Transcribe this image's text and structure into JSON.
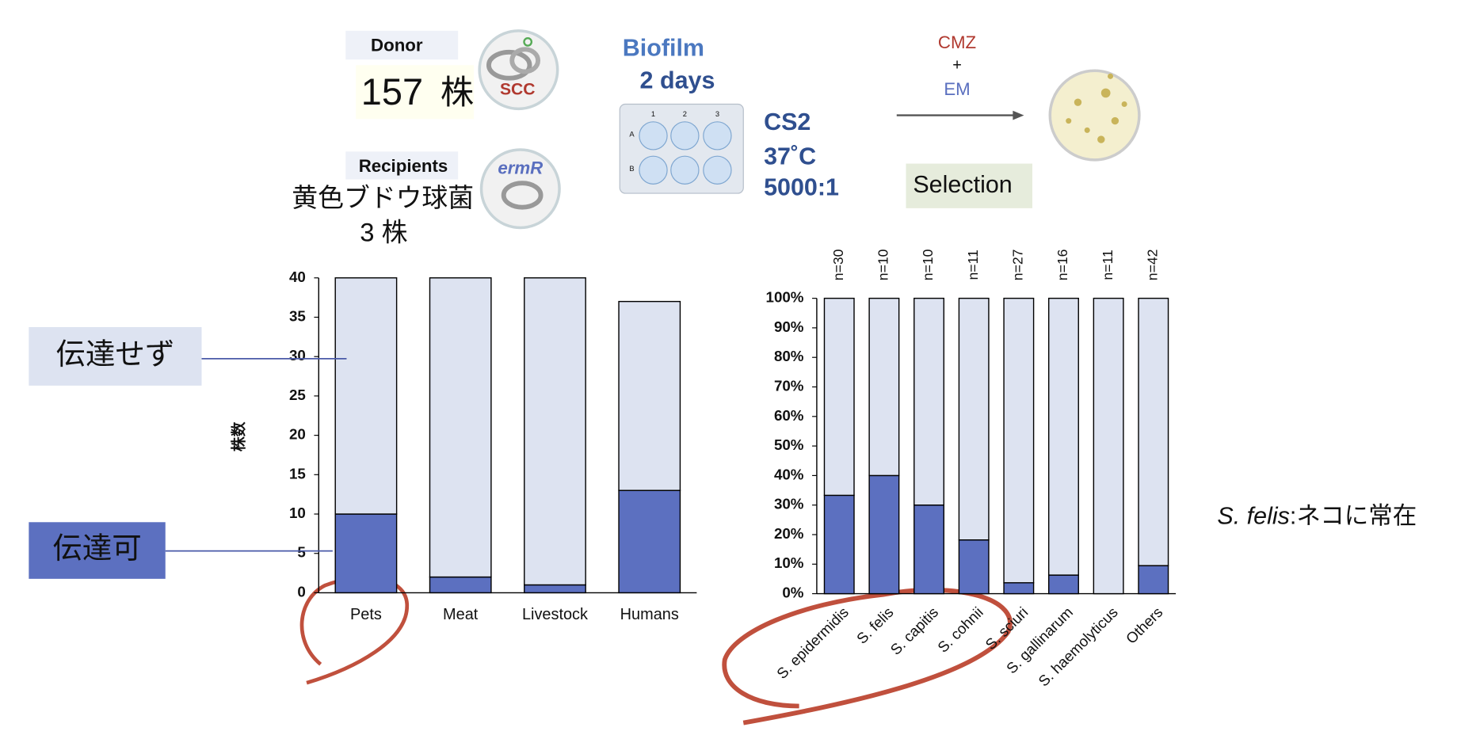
{
  "protocol": {
    "donor_label": "Donor",
    "donor_count": "157",
    "donor_unit": "株",
    "donor_element": "SCC",
    "recipients_label": "Recipients",
    "recipient_marker": "ermR",
    "recipient_species": "黄色ブドウ球菌",
    "recipient_count": "3 株",
    "biofilm": "Biofilm",
    "duration": "2 days",
    "plate_columns": [
      "1",
      "2",
      "3"
    ],
    "plate_rows": [
      "A",
      "B"
    ],
    "medium": "CS2",
    "temperature": "37˚C",
    "ratio": "5000:1",
    "drug_1": "CMZ",
    "plus": "+",
    "drug_2": "EM",
    "selection": "Selection"
  },
  "chart_data": [
    {
      "type": "stacked_bar",
      "y_label": "株数",
      "categories": [
        "Pets",
        "Meat",
        "Livestock",
        "Humans"
      ],
      "series": [
        {
          "name": "伝達可",
          "color": "#5c70c0",
          "values": [
            10,
            2,
            1,
            13
          ]
        },
        {
          "name": "伝達せず",
          "color": "#dde3f1",
          "values": [
            30,
            38,
            39,
            24
          ]
        }
      ],
      "ylim": [
        0,
        40
      ],
      "yticks": [
        0,
        5,
        10,
        15,
        20,
        25,
        30,
        35,
        40
      ]
    },
    {
      "type": "stacked_bar",
      "categories": [
        "S. epidermidis",
        "S. felis",
        "S. capitis",
        "S. cohnii",
        "S. sciuri",
        "S. gallinarum",
        "S. haemolyticus",
        "Others"
      ],
      "n_labels": [
        "n=30",
        "n=10",
        "n=10",
        "n=11",
        "n=27",
        "n=16",
        "n=11",
        "n=42"
      ],
      "series": [
        {
          "color": "#5c70c0",
          "values": [
            33.3,
            40,
            30,
            18.2,
            3.7,
            6.3,
            0,
            9.5
          ]
        },
        {
          "color": "#dde3f1",
          "values": [
            66.7,
            60,
            70,
            81.8,
            96.3,
            93.7,
            100,
            90.5
          ]
        }
      ],
      "ylim": [
        0,
        100
      ],
      "yticks": [
        {
          "value": 0,
          "label": "0%"
        },
        {
          "value": 10,
          "label": "10%"
        },
        {
          "value": 20,
          "label": "20%"
        },
        {
          "value": 30,
          "label": "30%"
        },
        {
          "value": 40,
          "label": "40%"
        },
        {
          "value": 50,
          "label": "50%"
        },
        {
          "value": 60,
          "label": "60%"
        },
        {
          "value": 70,
          "label": "70%"
        },
        {
          "value": 80,
          "label": "80%"
        },
        {
          "value": 90,
          "label": "90%"
        },
        {
          "value": 100,
          "label": "100%"
        }
      ],
      "annotation": {
        "species": "S. felis",
        "text": ":ネコに常在"
      }
    }
  ]
}
